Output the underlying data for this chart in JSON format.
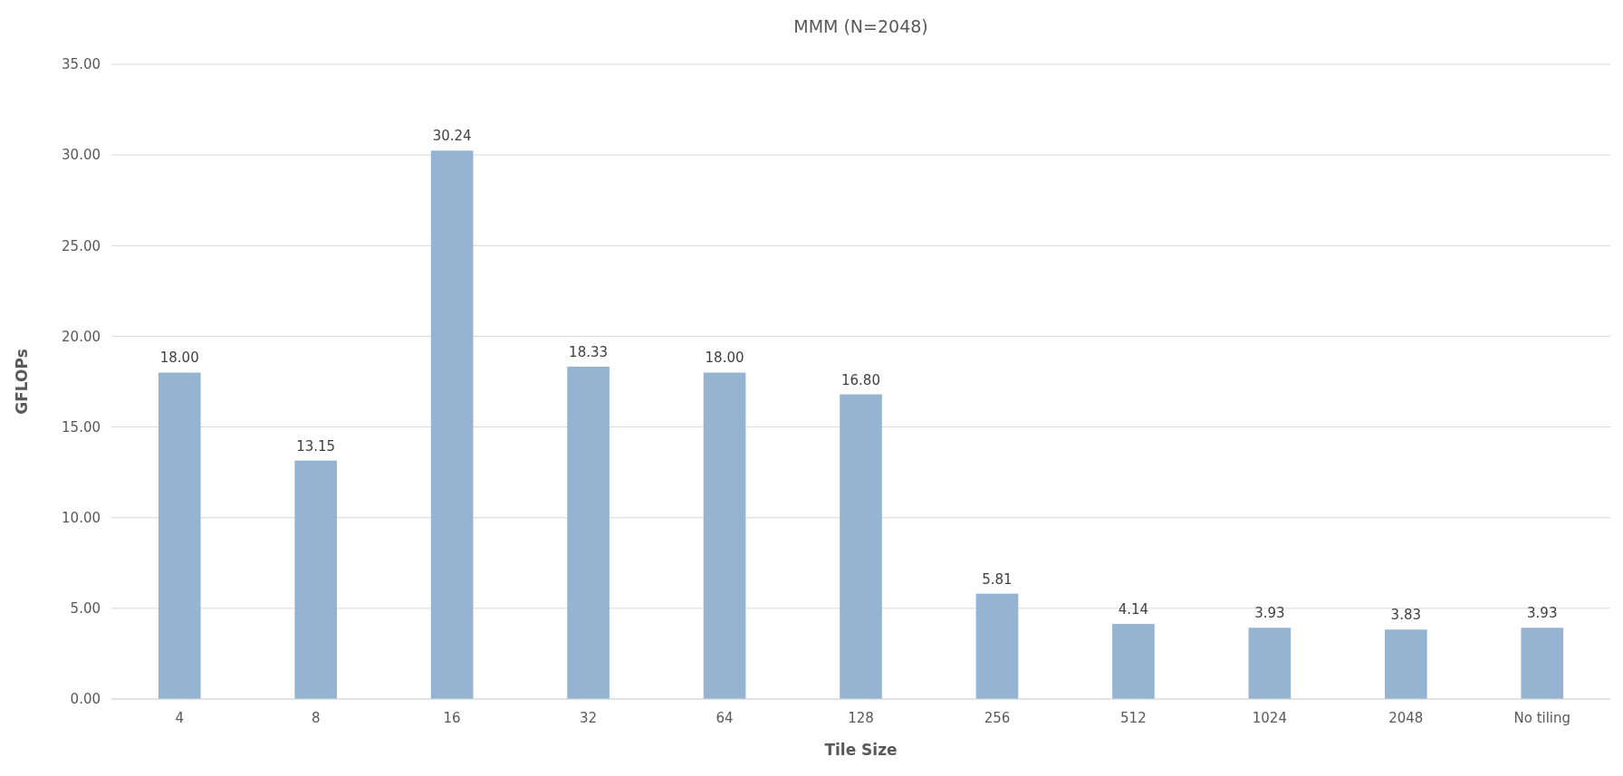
{
  "chart_data": {
    "type": "bar",
    "title": "MMM (N=2048)",
    "xlabel": "Tile Size",
    "ylabel": "GFLOPs",
    "categories": [
      "4",
      "8",
      "16",
      "32",
      "64",
      "128",
      "256",
      "512",
      "1024",
      "2048",
      "No tiling"
    ],
    "values": [
      18.0,
      13.15,
      30.24,
      18.33,
      18.0,
      16.8,
      5.81,
      4.14,
      3.93,
      3.83,
      3.93
    ],
    "value_labels": [
      "18.00",
      "13.15",
      "30.24",
      "18.33",
      "18.00",
      "16.80",
      "5.81",
      "4.14",
      "3.93",
      "3.83",
      "3.93"
    ],
    "color": "#94b4d2",
    "ylim": [
      0,
      35
    ],
    "yticks": [
      {
        "value": 0,
        "label": "0.00"
      },
      {
        "value": 5,
        "label": "5.00"
      },
      {
        "value": 10,
        "label": "10.00"
      },
      {
        "value": 15,
        "label": "15.00"
      },
      {
        "value": 20,
        "label": "20.00"
      },
      {
        "value": 25,
        "label": "25.00"
      },
      {
        "value": 30,
        "label": "30.00"
      },
      {
        "value": 35,
        "label": "35.00"
      }
    ],
    "grid": "y"
  }
}
